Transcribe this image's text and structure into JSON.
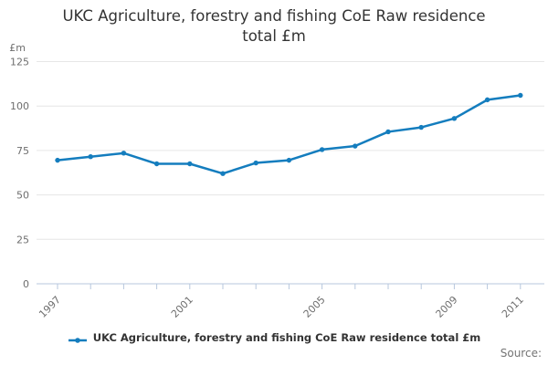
{
  "chart_data": {
    "type": "line",
    "title": "UKC Agriculture, forestry and fishing CoE Raw residence total £m",
    "unit_label": "£m",
    "categories": [
      "1997",
      "1998",
      "1999",
      "2000",
      "2001",
      "2002",
      "2003",
      "2004",
      "2005",
      "2006",
      "2007",
      "2008",
      "2009",
      "2010",
      "2011"
    ],
    "series": [
      {
        "name": "UKC Agriculture, forestry and fishing CoE Raw residence total £m",
        "color": "#147dbe",
        "values": [
          69.5,
          71.5,
          73.5,
          67.5,
          67.5,
          62,
          68,
          69.5,
          75.5,
          77.5,
          85.5,
          88,
          93,
          103.5,
          106
        ]
      }
    ],
    "ylim": [
      0,
      125
    ],
    "yticks": [
      0,
      25,
      50,
      75,
      100,
      125
    ],
    "xtick_labels_visible": [
      "1997",
      "2001",
      "2005",
      "2009",
      "2011"
    ],
    "grid": "horizontal",
    "legend_position": "bottom"
  },
  "footer": {
    "source_label": "Source:"
  },
  "colors": {
    "line": "#147dbe",
    "grid": "#e6e6e6",
    "axis": "#b7c7dd",
    "tick_text": "#6e6e6e",
    "title_text": "#333333",
    "source_text": "#737373"
  }
}
